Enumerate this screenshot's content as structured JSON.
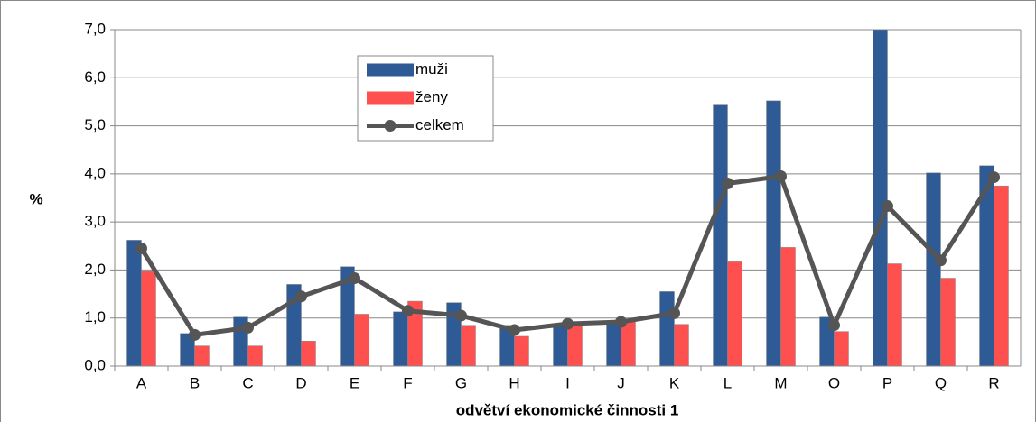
{
  "chart_data": {
    "type": "bar_line",
    "y_label": "%",
    "x_label": "odvětví ekonomické činnosti 1",
    "categories": [
      "A",
      "B",
      "C",
      "D",
      "E",
      "F",
      "G",
      "H",
      "I",
      "J",
      "K",
      "L",
      "M",
      "O",
      "P",
      "Q",
      "R"
    ],
    "series": [
      {
        "name": "muži",
        "type": "bar",
        "color": "#2e5a96",
        "values": [
          2.62,
          0.68,
          1.02,
          1.7,
          2.07,
          1.13,
          1.32,
          0.85,
          0.88,
          0.92,
          1.55,
          5.45,
          5.52,
          1.02,
          7.0,
          4.02,
          4.17
        ]
      },
      {
        "name": "ženy",
        "type": "bar",
        "color": "#ff5050",
        "values": [
          1.97,
          0.42,
          0.42,
          0.52,
          1.08,
          1.35,
          0.85,
          0.62,
          0.88,
          0.95,
          0.87,
          2.17,
          2.47,
          0.72,
          2.13,
          1.83,
          3.75
        ]
      },
      {
        "name": "celkem",
        "type": "line",
        "color": "#555555",
        "values": [
          2.45,
          0.65,
          0.8,
          1.45,
          1.83,
          1.15,
          1.05,
          0.75,
          0.88,
          0.92,
          1.1,
          3.8,
          3.95,
          0.85,
          3.33,
          2.2,
          3.93
        ]
      }
    ],
    "ylim": [
      0,
      7
    ],
    "yticks": [
      {
        "value": 0,
        "label": "0,0"
      },
      {
        "value": 1,
        "label": "1,0"
      },
      {
        "value": 2,
        "label": "2,0"
      },
      {
        "value": 3,
        "label": "3,0"
      },
      {
        "value": 4,
        "label": "4,0"
      },
      {
        "value": 5,
        "label": "5,0"
      },
      {
        "value": 6,
        "label": "6,0"
      },
      {
        "value": 7,
        "label": "7,0"
      }
    ],
    "grid": true
  }
}
